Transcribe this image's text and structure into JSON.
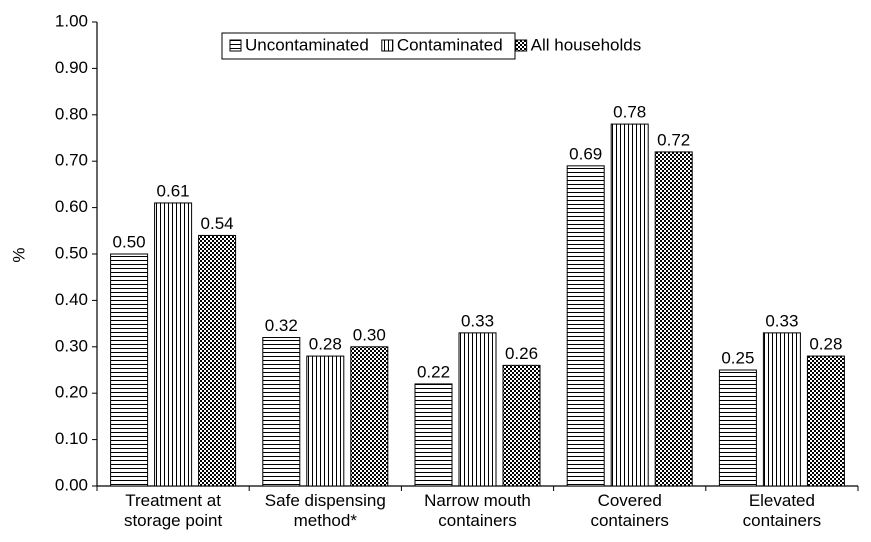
{
  "chart_data": {
    "type": "bar",
    "y_label": "%",
    "categories": [
      [
        "Treatment at",
        "storage point"
      ],
      [
        "Safe dispensing",
        "method*"
      ],
      [
        "Narrow mouth",
        "containers"
      ],
      [
        "Covered",
        "containers"
      ],
      [
        "Elevated",
        "containers"
      ]
    ],
    "series": [
      {
        "name": "Uncontaminated",
        "color": "#000000",
        "pattern": "horizontal",
        "values": [
          0.5,
          0.32,
          0.22,
          0.69,
          0.25
        ],
        "value_labels": [
          "0.50",
          "0.32",
          "0.22",
          "0.69",
          "0.25"
        ]
      },
      {
        "name": "Contaminated",
        "color": "#000000",
        "pattern": "vertical",
        "values": [
          0.61,
          0.28,
          0.33,
          0.78,
          0.33
        ],
        "value_labels": [
          "0.61",
          "0.28",
          "0.33",
          "0.78",
          "0.33"
        ]
      },
      {
        "name": "All households",
        "color": "#000000",
        "pattern": "checker",
        "values": [
          0.54,
          0.3,
          0.26,
          0.72,
          0.28
        ],
        "value_labels": [
          "0.54",
          "0.30",
          "0.26",
          "0.72",
          "0.28"
        ]
      }
    ],
    "ylim": [
      0,
      1
    ],
    "yticks": [
      {
        "value": 0,
        "label": "0.00"
      },
      {
        "value": 0.1,
        "label": "0.10"
      },
      {
        "value": 0.2,
        "label": "0.20"
      },
      {
        "value": 0.3,
        "label": "0.30"
      },
      {
        "value": 0.4,
        "label": "0.40"
      },
      {
        "value": 0.5,
        "label": "0.50"
      },
      {
        "value": 0.6,
        "label": "0.60"
      },
      {
        "value": 0.7,
        "label": "0.70"
      },
      {
        "value": 0.8,
        "label": "0.80"
      },
      {
        "value": 0.9,
        "label": "0.90"
      },
      {
        "value": 1,
        "label": "1.00"
      }
    ],
    "legend": "top"
  }
}
